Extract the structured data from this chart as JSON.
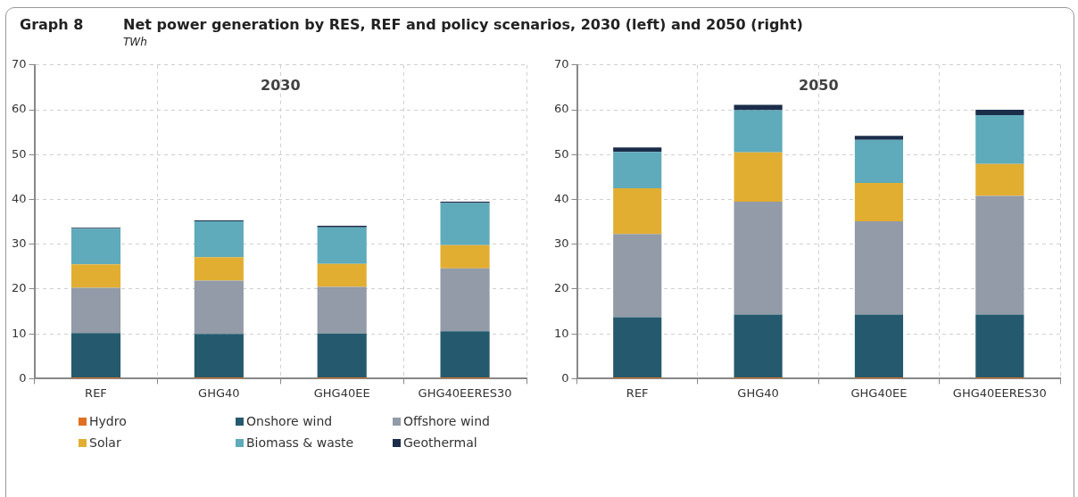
{
  "chart_data": [
    {
      "type": "bar",
      "title": "2030",
      "ylabel": "TWh",
      "annotations": [
        "Graph 8",
        "Net power generation by RES, REF and policy scenarios, 2030 (left) and 2050 (right)"
      ],
      "categories": [
        "REF",
        "GHG40",
        "GHG40EE",
        "GHG40EERES30"
      ],
      "stacked": true,
      "ylim": [
        0,
        70
      ],
      "yticks": [
        0,
        10,
        20,
        30,
        40,
        50,
        60,
        70
      ],
      "grid": true,
      "legend": "bottom",
      "series": [
        {
          "name": "Hydro",
          "color": "#e07020",
          "values": [
            0.3,
            0.3,
            0.3,
            0.3
          ]
        },
        {
          "name": "Onshore wind",
          "color": "#255a6e",
          "values": [
            9.9,
            9.7,
            9.8,
            10.3
          ]
        },
        {
          "name": "Offshore wind",
          "color": "#929ba7",
          "values": [
            10.1,
            11.9,
            10.4,
            14.0
          ]
        },
        {
          "name": "Solar",
          "color": "#e2ae32",
          "values": [
            5.2,
            5.2,
            5.1,
            5.2
          ]
        },
        {
          "name": "Biomass & waste",
          "color": "#5faabb",
          "values": [
            8.0,
            8.0,
            8.2,
            9.4
          ]
        },
        {
          "name": "Geothermal",
          "color": "#1b2d4a",
          "values": [
            0.2,
            0.2,
            0.3,
            0.3
          ]
        }
      ]
    },
    {
      "type": "bar",
      "title": "2050",
      "categories": [
        "REF",
        "GHG40",
        "GHG40EE",
        "GHG40EERES30"
      ],
      "stacked": true,
      "ylim": [
        0,
        70
      ],
      "yticks": [
        0,
        10,
        20,
        30,
        40,
        50,
        60,
        70
      ],
      "grid": true,
      "series": [
        {
          "color": "#e07020",
          "values": [
            0.3,
            0.3,
            0.3,
            0.3
          ]
        },
        {
          "color": "#255a6e",
          "values": [
            13.4,
            14.0,
            14.0,
            14.0
          ]
        },
        {
          "color": "#929ba7",
          "values": [
            18.6,
            25.2,
            20.8,
            26.5
          ]
        },
        {
          "color": "#e2ae32",
          "values": [
            10.2,
            11.0,
            8.6,
            7.1
          ]
        },
        {
          "color": "#5faabb",
          "values": [
            8.1,
            9.4,
            9.6,
            10.9
          ]
        },
        {
          "color": "#1b2d4a",
          "values": [
            1.0,
            1.2,
            0.9,
            1.2
          ]
        }
      ]
    }
  ]
}
